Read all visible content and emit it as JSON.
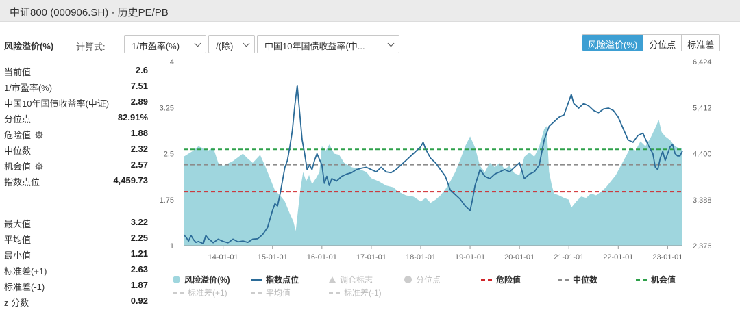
{
  "window": {
    "title": "中证800 (000906.SH) - 历史PE/PB"
  },
  "toolbar": {
    "metric_label": "风险溢价(%)",
    "formula_label": "计算式:",
    "dd1": "1/市盈率(%)",
    "dd2": "/(除)",
    "dd3": "中国10年国债收益率(中...",
    "seg_active": "风险溢价(%)",
    "seg_2": "分位点",
    "seg_3": "标准差"
  },
  "stats_top": [
    {
      "label": "当前值",
      "value": "2.6"
    },
    {
      "label": "1/市盈率(%)",
      "value": "7.51"
    },
    {
      "label": "中国10年国债收益率(中证)",
      "value": "2.89"
    },
    {
      "label": "分位点",
      "value": "82.91%"
    },
    {
      "label": "危险值",
      "value": "1.88",
      "icon": "gear-icon"
    },
    {
      "label": "中位数",
      "value": "2.32"
    },
    {
      "label": "机会值",
      "value": "2.57",
      "icon": "gear-icon"
    },
    {
      "label": "指数点位",
      "value": "4,459.73"
    }
  ],
  "stats_bottom": [
    {
      "label": "最大值",
      "value": "3.22"
    },
    {
      "label": "平均值",
      "value": "2.25"
    },
    {
      "label": "最小值",
      "value": "1.21"
    },
    {
      "label": "标准差(+1)",
      "value": "2.63"
    },
    {
      "label": "标准差(-1)",
      "value": "1.87"
    },
    {
      "label": "z 分数",
      "value": "0.92"
    }
  ],
  "chart_data": {
    "type": "area",
    "left_axis": {
      "ticks": [
        1,
        1.75,
        2.5,
        3.25,
        4
      ],
      "tick_labels": [
        "1",
        "1.75",
        "2.5",
        "3.25",
        "4"
      ],
      "range": [
        1,
        4
      ]
    },
    "right_axis": {
      "ticks": [
        2376,
        3388,
        4400,
        5412,
        6424
      ],
      "tick_labels": [
        "2,376",
        "3,388",
        "4,400",
        "5,412",
        "6,424"
      ],
      "range": [
        2376,
        6424
      ]
    },
    "x_ticks": [
      "14-01-01",
      "15-01-01",
      "16-01-01",
      "17-01-01",
      "18-01-01",
      "19-01-01",
      "20-01-01",
      "21-01-01",
      "22-01-01",
      "23-01-01"
    ],
    "x_range": [
      2013.2,
      2023.3
    ],
    "grid": false,
    "series": [
      {
        "name": "风险溢价(%)",
        "kind": "area",
        "axis": "left",
        "color": "#9fd6de",
        "points": [
          [
            2013.2,
            2.45
          ],
          [
            2013.4,
            2.55
          ],
          [
            2013.5,
            2.62
          ],
          [
            2013.7,
            2.55
          ],
          [
            2013.8,
            2.6
          ],
          [
            2013.9,
            2.35
          ],
          [
            2014.0,
            2.3
          ],
          [
            2014.2,
            2.38
          ],
          [
            2014.4,
            2.5
          ],
          [
            2014.5,
            2.42
          ],
          [
            2014.6,
            2.35
          ],
          [
            2014.75,
            2.48
          ],
          [
            2014.85,
            2.3
          ],
          [
            2014.95,
            2.1
          ],
          [
            2015.05,
            1.9
          ],
          [
            2015.15,
            1.82
          ],
          [
            2015.25,
            1.72
          ],
          [
            2015.35,
            1.52
          ],
          [
            2015.42,
            1.4
          ],
          [
            2015.47,
            1.24
          ],
          [
            2015.52,
            1.6
          ],
          [
            2015.57,
            1.95
          ],
          [
            2015.62,
            2.2
          ],
          [
            2015.68,
            2.05
          ],
          [
            2015.74,
            2.15
          ],
          [
            2015.8,
            2.0
          ],
          [
            2015.88,
            2.1
          ],
          [
            2015.95,
            2.2
          ],
          [
            2016.0,
            2.62
          ],
          [
            2016.08,
            2.55
          ],
          [
            2016.15,
            2.65
          ],
          [
            2016.25,
            2.5
          ],
          [
            2016.35,
            2.48
          ],
          [
            2016.45,
            2.35
          ],
          [
            2016.6,
            2.28
          ],
          [
            2016.75,
            2.25
          ],
          [
            2016.9,
            2.2
          ],
          [
            2017.0,
            2.1
          ],
          [
            2017.15,
            2.05
          ],
          [
            2017.3,
            1.98
          ],
          [
            2017.45,
            1.95
          ],
          [
            2017.55,
            1.88
          ],
          [
            2017.7,
            1.82
          ],
          [
            2017.85,
            1.8
          ],
          [
            2018.0,
            1.72
          ],
          [
            2018.1,
            1.78
          ],
          [
            2018.2,
            1.7
          ],
          [
            2018.3,
            1.75
          ],
          [
            2018.4,
            1.82
          ],
          [
            2018.5,
            1.92
          ],
          [
            2018.6,
            2.05
          ],
          [
            2018.7,
            2.2
          ],
          [
            2018.8,
            2.4
          ],
          [
            2018.9,
            2.62
          ],
          [
            2019.0,
            2.78
          ],
          [
            2019.1,
            2.6
          ],
          [
            2019.2,
            2.3
          ],
          [
            2019.3,
            2.2
          ],
          [
            2019.4,
            2.35
          ],
          [
            2019.5,
            2.28
          ],
          [
            2019.6,
            2.35
          ],
          [
            2019.7,
            2.25
          ],
          [
            2019.8,
            2.3
          ],
          [
            2019.9,
            2.18
          ],
          [
            2020.0,
            2.15
          ],
          [
            2020.1,
            2.45
          ],
          [
            2020.2,
            2.52
          ],
          [
            2020.3,
            2.45
          ],
          [
            2020.4,
            2.62
          ],
          [
            2020.5,
            2.9
          ],
          [
            2020.55,
            2.95
          ],
          [
            2020.6,
            2.2
          ],
          [
            2020.65,
            2.0
          ],
          [
            2020.7,
            1.85
          ],
          [
            2020.8,
            1.82
          ],
          [
            2020.9,
            1.78
          ],
          [
            2021.0,
            1.75
          ],
          [
            2021.05,
            1.62
          ],
          [
            2021.15,
            1.72
          ],
          [
            2021.25,
            1.8
          ],
          [
            2021.35,
            1.78
          ],
          [
            2021.45,
            1.85
          ],
          [
            2021.55,
            1.82
          ],
          [
            2021.65,
            1.88
          ],
          [
            2021.75,
            1.95
          ],
          [
            2021.85,
            2.05
          ],
          [
            2021.95,
            2.15
          ],
          [
            2022.05,
            2.3
          ],
          [
            2022.15,
            2.45
          ],
          [
            2022.25,
            2.6
          ],
          [
            2022.35,
            2.55
          ],
          [
            2022.45,
            2.7
          ],
          [
            2022.55,
            2.62
          ],
          [
            2022.65,
            2.75
          ],
          [
            2022.75,
            2.92
          ],
          [
            2022.82,
            3.05
          ],
          [
            2022.88,
            2.85
          ],
          [
            2022.95,
            2.78
          ],
          [
            2023.05,
            2.72
          ],
          [
            2023.15,
            2.62
          ],
          [
            2023.25,
            2.58
          ],
          [
            2023.3,
            2.6
          ]
        ]
      },
      {
        "name": "指数点位",
        "kind": "line",
        "axis": "right",
        "color": "#2b6b98",
        "points": [
          [
            2013.2,
            2620
          ],
          [
            2013.25,
            2560
          ],
          [
            2013.3,
            2480
          ],
          [
            2013.35,
            2600
          ],
          [
            2013.4,
            2510
          ],
          [
            2013.45,
            2450
          ],
          [
            2013.5,
            2470
          ],
          [
            2013.6,
            2420
          ],
          [
            2013.65,
            2600
          ],
          [
            2013.7,
            2530
          ],
          [
            2013.75,
            2490
          ],
          [
            2013.8,
            2440
          ],
          [
            2013.9,
            2520
          ],
          [
            2014.0,
            2470
          ],
          [
            2014.1,
            2440
          ],
          [
            2014.2,
            2520
          ],
          [
            2014.3,
            2460
          ],
          [
            2014.4,
            2480
          ],
          [
            2014.5,
            2450
          ],
          [
            2014.6,
            2520
          ],
          [
            2014.7,
            2530
          ],
          [
            2014.8,
            2620
          ],
          [
            2014.9,
            2780
          ],
          [
            2015.0,
            3150
          ],
          [
            2015.05,
            3300
          ],
          [
            2015.1,
            3250
          ],
          [
            2015.15,
            3500
          ],
          [
            2015.2,
            3800
          ],
          [
            2015.25,
            4100
          ],
          [
            2015.3,
            4250
          ],
          [
            2015.35,
            4550
          ],
          [
            2015.4,
            4900
          ],
          [
            2015.45,
            5450
          ],
          [
            2015.5,
            5900
          ],
          [
            2015.55,
            5300
          ],
          [
            2015.6,
            4700
          ],
          [
            2015.65,
            4400
          ],
          [
            2015.7,
            4050
          ],
          [
            2015.75,
            4150
          ],
          [
            2015.8,
            4050
          ],
          [
            2015.85,
            4250
          ],
          [
            2015.9,
            4400
          ],
          [
            2016.0,
            4150
          ],
          [
            2016.05,
            3750
          ],
          [
            2016.1,
            3900
          ],
          [
            2016.15,
            3700
          ],
          [
            2016.2,
            3850
          ],
          [
            2016.3,
            3800
          ],
          [
            2016.4,
            3900
          ],
          [
            2016.5,
            3950
          ],
          [
            2016.6,
            3980
          ],
          [
            2016.7,
            4050
          ],
          [
            2016.8,
            4080
          ],
          [
            2016.9,
            4100
          ],
          [
            2017.0,
            4050
          ],
          [
            2017.1,
            4000
          ],
          [
            2017.2,
            4100
          ],
          [
            2017.3,
            4000
          ],
          [
            2017.4,
            3980
          ],
          [
            2017.5,
            4050
          ],
          [
            2017.6,
            4150
          ],
          [
            2017.7,
            4250
          ],
          [
            2017.8,
            4350
          ],
          [
            2017.9,
            4450
          ],
          [
            2018.0,
            4550
          ],
          [
            2018.05,
            4650
          ],
          [
            2018.1,
            4500
          ],
          [
            2018.2,
            4300
          ],
          [
            2018.3,
            4200
          ],
          [
            2018.4,
            4050
          ],
          [
            2018.5,
            3900
          ],
          [
            2018.6,
            3600
          ],
          [
            2018.7,
            3500
          ],
          [
            2018.8,
            3400
          ],
          [
            2018.9,
            3250
          ],
          [
            2019.0,
            3150
          ],
          [
            2019.05,
            3400
          ],
          [
            2019.1,
            3700
          ],
          [
            2019.2,
            4050
          ],
          [
            2019.3,
            3900
          ],
          [
            2019.4,
            3850
          ],
          [
            2019.5,
            3950
          ],
          [
            2019.6,
            4000
          ],
          [
            2019.7,
            4050
          ],
          [
            2019.8,
            4000
          ],
          [
            2019.9,
            4100
          ],
          [
            2020.0,
            4200
          ],
          [
            2020.1,
            3850
          ],
          [
            2020.2,
            3950
          ],
          [
            2020.3,
            4000
          ],
          [
            2020.4,
            4150
          ],
          [
            2020.5,
            4700
          ],
          [
            2020.6,
            5000
          ],
          [
            2020.7,
            5100
          ],
          [
            2020.8,
            5200
          ],
          [
            2020.9,
            5250
          ],
          [
            2021.0,
            5550
          ],
          [
            2021.05,
            5700
          ],
          [
            2021.1,
            5500
          ],
          [
            2021.2,
            5400
          ],
          [
            2021.3,
            5500
          ],
          [
            2021.4,
            5450
          ],
          [
            2021.5,
            5350
          ],
          [
            2021.6,
            5300
          ],
          [
            2021.7,
            5380
          ],
          [
            2021.8,
            5400
          ],
          [
            2021.9,
            5350
          ],
          [
            2022.0,
            5200
          ],
          [
            2022.1,
            4950
          ],
          [
            2022.2,
            4700
          ],
          [
            2022.3,
            4650
          ],
          [
            2022.4,
            4800
          ],
          [
            2022.5,
            4850
          ],
          [
            2022.6,
            4600
          ],
          [
            2022.7,
            4400
          ],
          [
            2022.75,
            4100
          ],
          [
            2022.8,
            4050
          ],
          [
            2022.85,
            4300
          ],
          [
            2022.9,
            4450
          ],
          [
            2022.95,
            4250
          ],
          [
            2023.0,
            4400
          ],
          [
            2023.05,
            4550
          ],
          [
            2023.1,
            4600
          ],
          [
            2023.15,
            4400
          ],
          [
            2023.2,
            4350
          ],
          [
            2023.25,
            4350
          ],
          [
            2023.3,
            4460
          ]
        ]
      }
    ],
    "reference_lines": [
      {
        "name": "危险值",
        "value": 1.88,
        "color": "#d0262a"
      },
      {
        "name": "中位数",
        "value": 2.32,
        "color": "#8c8c8c"
      },
      {
        "name": "机会值",
        "value": 2.57,
        "color": "#2ea04a"
      }
    ],
    "legend": [
      {
        "label": "风险溢价(%)",
        "marker": "dot",
        "color": "#9fd6de",
        "active": true
      },
      {
        "label": "指数点位",
        "marker": "line",
        "color": "#2b6b98",
        "active": true
      },
      {
        "label": "调仓标志",
        "marker": "triangle",
        "color": "#cccccc",
        "active": false
      },
      {
        "label": "分位点",
        "marker": "dot",
        "color": "#cccccc",
        "active": false
      },
      {
        "label": "危险值",
        "marker": "dash",
        "color": "#d0262a",
        "active": true
      },
      {
        "label": "中位数",
        "marker": "dash",
        "color": "#8c8c8c",
        "active": true
      },
      {
        "label": "机会值",
        "marker": "dash",
        "color": "#2ea04a",
        "active": true
      },
      {
        "label": "标准差(+1)",
        "marker": "dash",
        "color": "#cccccc",
        "active": false
      },
      {
        "label": "平均值",
        "marker": "dash",
        "color": "#cccccc",
        "active": false
      },
      {
        "label": "标准差(-1)",
        "marker": "dash",
        "color": "#cccccc",
        "active": false
      }
    ],
    "legend_position": "bottom"
  }
}
